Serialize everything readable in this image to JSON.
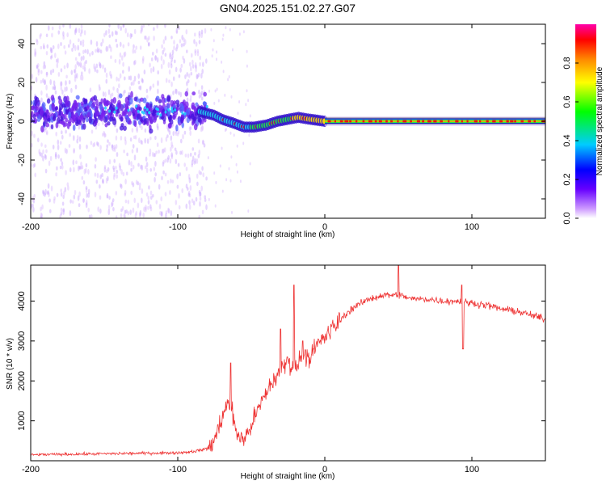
{
  "title": "GN04.2025.151.02.27.G07",
  "chart_data": [
    {
      "type": "heatmap",
      "name": "spectrogram",
      "xlabel": "Height of straight line (km)",
      "ylabel": "Frequency (Hz)",
      "xlim": [
        -200,
        150
      ],
      "ylim": [
        -50,
        50
      ],
      "xticks": [
        -200,
        -100,
        0,
        100
      ],
      "yticks": [
        -40,
        -20,
        0,
        20,
        40
      ],
      "colorbar": {
        "label": "Normalized spectral amplitude",
        "range": [
          0,
          1
        ],
        "ticks": [
          0.0,
          0.2,
          0.4,
          0.6,
          0.8
        ]
      },
      "ridge": [
        {
          "x": -85,
          "y": 5
        },
        {
          "x": -75,
          "y": 3
        },
        {
          "x": -70,
          "y": 1
        },
        {
          "x": -62,
          "y": -1
        },
        {
          "x": -55,
          "y": -3
        },
        {
          "x": -48,
          "y": -3
        },
        {
          "x": -40,
          "y": -2
        },
        {
          "x": -32,
          "y": 0
        },
        {
          "x": -25,
          "y": 1
        },
        {
          "x": -18,
          "y": 2
        },
        {
          "x": -10,
          "y": 1
        },
        {
          "x": 0,
          "y": 0
        },
        {
          "x": 150,
          "y": 0
        }
      ],
      "noise_region": {
        "x_from": -200,
        "x_to": -80,
        "freq_center": 5
      }
    },
    {
      "type": "line",
      "name": "snr",
      "xlabel": "Height of straight line (km)",
      "ylabel": "SNR (10 * v/v)",
      "xlim": [
        -200,
        150
      ],
      "ylim": [
        0,
        4900
      ],
      "xticks": [
        -200,
        -100,
        0,
        100
      ],
      "yticks": [
        1000,
        2000,
        3000,
        4000
      ],
      "color": "#ee3333",
      "series": [
        {
          "name": "SNR",
          "x": [
            -200,
            -180,
            -160,
            -140,
            -120,
            -100,
            -90,
            -80,
            -75,
            -70,
            -65,
            -60,
            -55,
            -50,
            -45,
            -40,
            -35,
            -30,
            -25,
            -20,
            -15,
            -10,
            -5,
            0,
            5,
            10,
            15,
            20,
            25,
            30,
            35,
            40,
            45,
            50,
            55,
            60,
            70,
            80,
            90,
            100,
            110,
            120,
            130,
            140,
            150
          ],
          "values": [
            150,
            160,
            170,
            180,
            190,
            200,
            230,
            300,
            500,
            1100,
            1500,
            700,
            500,
            900,
            1300,
            1700,
            2000,
            2300,
            2500,
            2300,
            2700,
            2600,
            2900,
            3100,
            3300,
            3500,
            3700,
            3850,
            3950,
            4050,
            4100,
            4150,
            4150,
            4150,
            4100,
            4050,
            4050,
            4000,
            4000,
            3950,
            3900,
            3800,
            3750,
            3650,
            3550
          ]
        }
      ],
      "spikes": [
        {
          "x": -64,
          "y": 2450
        },
        {
          "x": -30,
          "y": 3300
        },
        {
          "x": -21,
          "y": 4400
        },
        {
          "x": -15,
          "y": 3000
        },
        {
          "x": 50,
          "y": 4900
        },
        {
          "x": 93,
          "y": 4400
        },
        {
          "x": 94,
          "y": 2800
        }
      ]
    }
  ]
}
